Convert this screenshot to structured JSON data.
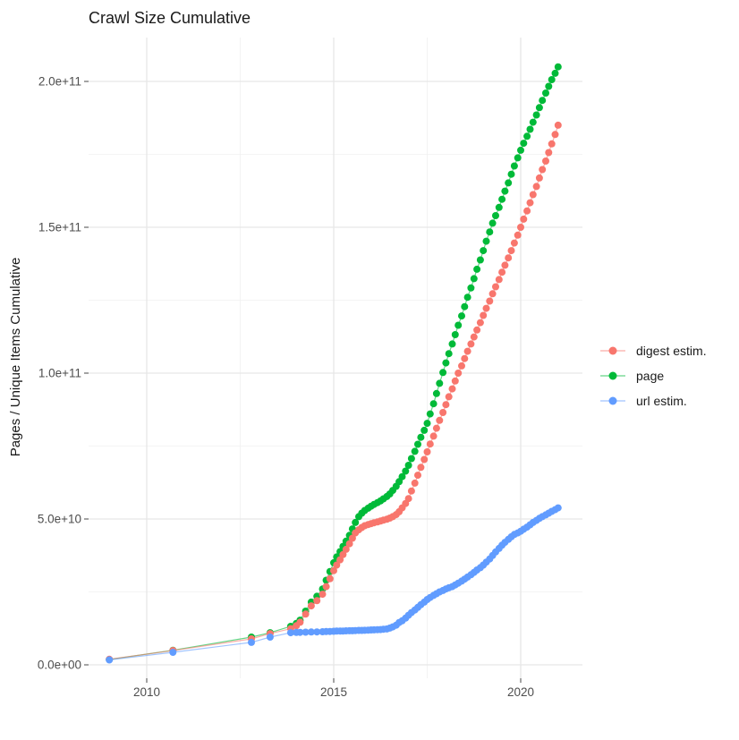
{
  "title": "Crawl Size Cumulative",
  "axes": {
    "y_label": "Pages / Unique Items Cumulative",
    "x_tick_labels": [
      "2010",
      "2015",
      "2020"
    ],
    "y_tick_labels": [
      "0.0e+00",
      "5.0e+10",
      "1.0e+11",
      "1.5e+11",
      "2.0e+11"
    ]
  },
  "legend": {
    "position": "right",
    "items": [
      {
        "label": "digest estim.",
        "color": "#F8766D"
      },
      {
        "label": "page",
        "color": "#00BA38"
      },
      {
        "label": "url estim.",
        "color": "#619CFF"
      }
    ]
  },
  "colors": {
    "grid_major": "#e6e6e6",
    "grid_minor": "#f0f0f0",
    "tick": "#666666",
    "background": "#ffffff"
  },
  "chart_data": {
    "type": "scatter",
    "title": "Crawl Size Cumulative",
    "xlabel": "",
    "ylabel": "Pages / Unique Items Cumulative",
    "x_unit": "year (decimal)",
    "value_unit": "billions (1e9) of pages / unique items",
    "xlim": [
      2008.45,
      2021.65
    ],
    "ylim_billions": [
      -4,
      215
    ],
    "x_major_ticks": [
      2010,
      2015,
      2020
    ],
    "x_minor_ticks": [
      2012.5,
      2017.5
    ],
    "y_major_ticks_billions": [
      0,
      50,
      100,
      150,
      200
    ],
    "y_minor_ticks_billions": [
      25,
      75,
      125,
      175
    ],
    "grid": true,
    "legend_position": "right",
    "series": [
      {
        "name": "digest estim.",
        "color": "#F8766D",
        "points": [
          [
            2009.0,
            1.9
          ],
          [
            2010.7,
            4.9
          ],
          [
            2012.8,
            8.9
          ],
          [
            2013.3,
            10.7
          ],
          [
            2013.85,
            12.4
          ],
          [
            2014.0,
            13.4
          ],
          [
            2014.1,
            14.6
          ],
          [
            2014.25,
            17.4
          ],
          [
            2014.4,
            20.2
          ],
          [
            2014.55,
            22.0
          ],
          [
            2014.7,
            24.2
          ],
          [
            2014.8,
            26.8
          ],
          [
            2014.9,
            29.5
          ],
          [
            2015.0,
            32.3
          ],
          [
            2015.08,
            34.2
          ],
          [
            2015.17,
            36.0
          ],
          [
            2015.25,
            37.8
          ],
          [
            2015.33,
            39.6
          ],
          [
            2015.42,
            41.5
          ],
          [
            2015.5,
            43.4
          ],
          [
            2015.58,
            45.2
          ],
          [
            2015.67,
            46.3
          ],
          [
            2015.75,
            47.1
          ],
          [
            2015.83,
            47.7
          ],
          [
            2015.92,
            48.1
          ],
          [
            2016.0,
            48.4
          ],
          [
            2016.08,
            48.7
          ],
          [
            2016.17,
            49.0
          ],
          [
            2016.25,
            49.3
          ],
          [
            2016.33,
            49.6
          ],
          [
            2016.42,
            49.9
          ],
          [
            2016.5,
            50.3
          ],
          [
            2016.58,
            50.8
          ],
          [
            2016.67,
            51.5
          ],
          [
            2016.75,
            52.5
          ],
          [
            2016.83,
            53.8
          ],
          [
            2016.92,
            55.3
          ],
          [
            2017.0,
            57.0
          ],
          [
            2017.08,
            59.6
          ],
          [
            2017.17,
            62.3
          ],
          [
            2017.25,
            65.0
          ],
          [
            2017.33,
            67.7
          ],
          [
            2017.42,
            70.4
          ],
          [
            2017.5,
            73.0
          ],
          [
            2017.58,
            75.7
          ],
          [
            2017.67,
            78.4
          ],
          [
            2017.75,
            81.1
          ],
          [
            2017.83,
            83.8
          ],
          [
            2017.92,
            86.5
          ],
          [
            2018.0,
            89.2
          ],
          [
            2018.08,
            91.9
          ],
          [
            2018.17,
            94.6
          ],
          [
            2018.25,
            97.3
          ],
          [
            2018.33,
            100.0
          ],
          [
            2018.42,
            102.5
          ],
          [
            2018.5,
            105.0
          ],
          [
            2018.58,
            107.5
          ],
          [
            2018.67,
            110.0
          ],
          [
            2018.75,
            112.4
          ],
          [
            2018.83,
            114.8
          ],
          [
            2018.92,
            117.3
          ],
          [
            2019.0,
            119.8
          ],
          [
            2019.08,
            122.2
          ],
          [
            2019.17,
            124.7
          ],
          [
            2019.25,
            127.2
          ],
          [
            2019.33,
            129.6
          ],
          [
            2019.42,
            132.1
          ],
          [
            2019.5,
            134.6
          ],
          [
            2019.58,
            137.0
          ],
          [
            2019.67,
            139.5
          ],
          [
            2019.75,
            142.0
          ],
          [
            2019.83,
            144.6
          ],
          [
            2019.92,
            147.3
          ],
          [
            2020.0,
            150.0
          ],
          [
            2020.08,
            152.8
          ],
          [
            2020.17,
            155.6
          ],
          [
            2020.25,
            158.4
          ],
          [
            2020.33,
            161.2
          ],
          [
            2020.42,
            164.0
          ],
          [
            2020.5,
            166.9
          ],
          [
            2020.58,
            169.8
          ],
          [
            2020.67,
            172.7
          ],
          [
            2020.75,
            175.6
          ],
          [
            2020.83,
            178.6
          ],
          [
            2020.92,
            181.8
          ],
          [
            2021.0,
            185.0
          ]
        ]
      },
      {
        "name": "page",
        "color": "#00BA38",
        "points": [
          [
            2009.0,
            1.8
          ],
          [
            2010.7,
            5.0
          ],
          [
            2012.8,
            9.5
          ],
          [
            2013.3,
            11.0
          ],
          [
            2013.85,
            13.2
          ],
          [
            2014.0,
            14.2
          ],
          [
            2014.1,
            15.3
          ],
          [
            2014.25,
            18.4
          ],
          [
            2014.4,
            21.5
          ],
          [
            2014.55,
            23.5
          ],
          [
            2014.7,
            26.0
          ],
          [
            2014.8,
            29.0
          ],
          [
            2014.9,
            32.0
          ],
          [
            2015.0,
            35.0
          ],
          [
            2015.08,
            37.0
          ],
          [
            2015.17,
            38.8
          ],
          [
            2015.25,
            40.6
          ],
          [
            2015.33,
            42.4
          ],
          [
            2015.42,
            44.4
          ],
          [
            2015.5,
            46.6
          ],
          [
            2015.58,
            48.8
          ],
          [
            2015.67,
            50.8
          ],
          [
            2015.75,
            52.0
          ],
          [
            2015.83,
            52.9
          ],
          [
            2015.92,
            53.7
          ],
          [
            2016.0,
            54.4
          ],
          [
            2016.08,
            55.0
          ],
          [
            2016.17,
            55.6
          ],
          [
            2016.25,
            56.2
          ],
          [
            2016.33,
            56.9
          ],
          [
            2016.42,
            57.7
          ],
          [
            2016.5,
            58.6
          ],
          [
            2016.58,
            59.8
          ],
          [
            2016.67,
            61.2
          ],
          [
            2016.75,
            62.8
          ],
          [
            2016.83,
            64.5
          ],
          [
            2016.92,
            66.4
          ],
          [
            2017.0,
            68.4
          ],
          [
            2017.08,
            70.7
          ],
          [
            2017.17,
            73.2
          ],
          [
            2017.25,
            75.6
          ],
          [
            2017.33,
            78.0
          ],
          [
            2017.42,
            80.4
          ],
          [
            2017.5,
            82.8
          ],
          [
            2017.58,
            86.0
          ],
          [
            2017.67,
            89.5
          ],
          [
            2017.75,
            93.0
          ],
          [
            2017.83,
            96.5
          ],
          [
            2017.92,
            100.2
          ],
          [
            2018.0,
            103.5
          ],
          [
            2018.08,
            106.7
          ],
          [
            2018.17,
            110.0
          ],
          [
            2018.25,
            113.2
          ],
          [
            2018.33,
            116.4
          ],
          [
            2018.42,
            119.6
          ],
          [
            2018.5,
            122.8
          ],
          [
            2018.58,
            126.0
          ],
          [
            2018.67,
            129.2
          ],
          [
            2018.75,
            132.4
          ],
          [
            2018.83,
            135.6
          ],
          [
            2018.92,
            138.8
          ],
          [
            2019.0,
            142.0
          ],
          [
            2019.08,
            145.2
          ],
          [
            2019.17,
            148.4
          ],
          [
            2019.25,
            151.4
          ],
          [
            2019.33,
            154.0
          ],
          [
            2019.42,
            156.8
          ],
          [
            2019.5,
            159.6
          ],
          [
            2019.58,
            162.4
          ],
          [
            2019.67,
            165.2
          ],
          [
            2019.75,
            168.2
          ],
          [
            2019.83,
            171.0
          ],
          [
            2019.92,
            173.8
          ],
          [
            2020.0,
            176.4
          ],
          [
            2020.08,
            178.8
          ],
          [
            2020.17,
            181.2
          ],
          [
            2020.25,
            183.6
          ],
          [
            2020.33,
            186.0
          ],
          [
            2020.42,
            188.5
          ],
          [
            2020.5,
            191.0
          ],
          [
            2020.58,
            193.5
          ],
          [
            2020.67,
            196.0
          ],
          [
            2020.75,
            198.3
          ],
          [
            2020.83,
            200.6
          ],
          [
            2020.92,
            202.8
          ],
          [
            2021.0,
            205.0
          ]
        ]
      },
      {
        "name": "url estim.",
        "color": "#619CFF",
        "points": [
          [
            2009.0,
            1.7
          ],
          [
            2010.7,
            4.3
          ],
          [
            2012.8,
            7.7
          ],
          [
            2013.3,
            9.5
          ],
          [
            2013.85,
            11.0
          ],
          [
            2014.0,
            11.1
          ],
          [
            2014.1,
            11.15
          ],
          [
            2014.25,
            11.2
          ],
          [
            2014.4,
            11.25
          ],
          [
            2014.55,
            11.3
          ],
          [
            2014.7,
            11.35
          ],
          [
            2014.8,
            11.4
          ],
          [
            2014.9,
            11.45
          ],
          [
            2015.0,
            11.5
          ],
          [
            2015.08,
            11.55
          ],
          [
            2015.17,
            11.6
          ],
          [
            2015.25,
            11.6
          ],
          [
            2015.33,
            11.65
          ],
          [
            2015.42,
            11.7
          ],
          [
            2015.5,
            11.7
          ],
          [
            2015.58,
            11.75
          ],
          [
            2015.67,
            11.8
          ],
          [
            2015.75,
            11.8
          ],
          [
            2015.83,
            11.85
          ],
          [
            2015.92,
            11.9
          ],
          [
            2016.0,
            11.95
          ],
          [
            2016.08,
            12.0
          ],
          [
            2016.17,
            12.05
          ],
          [
            2016.25,
            12.1
          ],
          [
            2016.33,
            12.2
          ],
          [
            2016.42,
            12.3
          ],
          [
            2016.5,
            12.6
          ],
          [
            2016.58,
            13.0
          ],
          [
            2016.67,
            13.6
          ],
          [
            2016.75,
            14.5
          ],
          [
            2016.83,
            15.1
          ],
          [
            2016.92,
            16.0
          ],
          [
            2017.0,
            17.0
          ],
          [
            2017.08,
            17.9
          ],
          [
            2017.17,
            18.8
          ],
          [
            2017.25,
            19.7
          ],
          [
            2017.33,
            20.6
          ],
          [
            2017.42,
            21.5
          ],
          [
            2017.5,
            22.4
          ],
          [
            2017.58,
            23.1
          ],
          [
            2017.67,
            23.8
          ],
          [
            2017.75,
            24.4
          ],
          [
            2017.83,
            25.0
          ],
          [
            2017.92,
            25.5
          ],
          [
            2018.0,
            26.0
          ],
          [
            2018.08,
            26.4
          ],
          [
            2018.17,
            26.8
          ],
          [
            2018.25,
            27.4
          ],
          [
            2018.33,
            28.0
          ],
          [
            2018.42,
            28.7
          ],
          [
            2018.5,
            29.4
          ],
          [
            2018.58,
            30.1
          ],
          [
            2018.67,
            30.9
          ],
          [
            2018.75,
            31.7
          ],
          [
            2018.83,
            32.5
          ],
          [
            2018.92,
            33.3
          ],
          [
            2019.0,
            34.2
          ],
          [
            2019.08,
            35.2
          ],
          [
            2019.17,
            36.3
          ],
          [
            2019.25,
            37.5
          ],
          [
            2019.33,
            38.7
          ],
          [
            2019.42,
            39.9
          ],
          [
            2019.5,
            41.0
          ],
          [
            2019.58,
            42.0
          ],
          [
            2019.67,
            43.0
          ],
          [
            2019.75,
            43.9
          ],
          [
            2019.83,
            44.7
          ],
          [
            2019.92,
            45.2
          ],
          [
            2020.0,
            45.8
          ],
          [
            2020.08,
            46.5
          ],
          [
            2020.17,
            47.2
          ],
          [
            2020.25,
            48.0
          ],
          [
            2020.33,
            48.8
          ],
          [
            2020.42,
            49.5
          ],
          [
            2020.5,
            50.2
          ],
          [
            2020.58,
            50.8
          ],
          [
            2020.67,
            51.4
          ],
          [
            2020.75,
            52.0
          ],
          [
            2020.83,
            52.6
          ],
          [
            2020.92,
            53.2
          ],
          [
            2021.0,
            53.8
          ]
        ]
      }
    ]
  }
}
